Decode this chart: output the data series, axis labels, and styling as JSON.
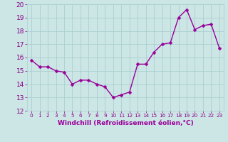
{
  "x": [
    0,
    1,
    2,
    3,
    4,
    5,
    6,
    7,
    8,
    9,
    10,
    11,
    12,
    13,
    14,
    15,
    16,
    17,
    18,
    19,
    20,
    21,
    22,
    23
  ],
  "y": [
    15.8,
    15.3,
    15.3,
    15.0,
    14.9,
    14.0,
    14.3,
    14.3,
    14.0,
    13.8,
    13.0,
    13.2,
    13.4,
    15.5,
    15.5,
    16.4,
    17.0,
    17.1,
    19.0,
    19.6,
    18.1,
    18.4,
    18.5,
    16.7
  ],
  "line_color": "#990099",
  "marker_color": "#990099",
  "bg_color": "#cce5e5",
  "grid_color": "#aad0d0",
  "xlabel": "Windchill (Refroidissement éolien,°C)",
  "xlim": [
    -0.5,
    23.5
  ],
  "ylim": [
    12,
    20
  ],
  "yticks": [
    12,
    13,
    14,
    15,
    16,
    17,
    18,
    19,
    20
  ],
  "xticks": [
    0,
    1,
    2,
    3,
    4,
    5,
    6,
    7,
    8,
    9,
    10,
    11,
    12,
    13,
    14,
    15,
    16,
    17,
    18,
    19,
    20,
    21,
    22,
    23
  ],
  "xlabel_fontsize": 6.5,
  "tick_fontsize": 6.5,
  "line_width": 1.0,
  "marker_size": 2.5
}
